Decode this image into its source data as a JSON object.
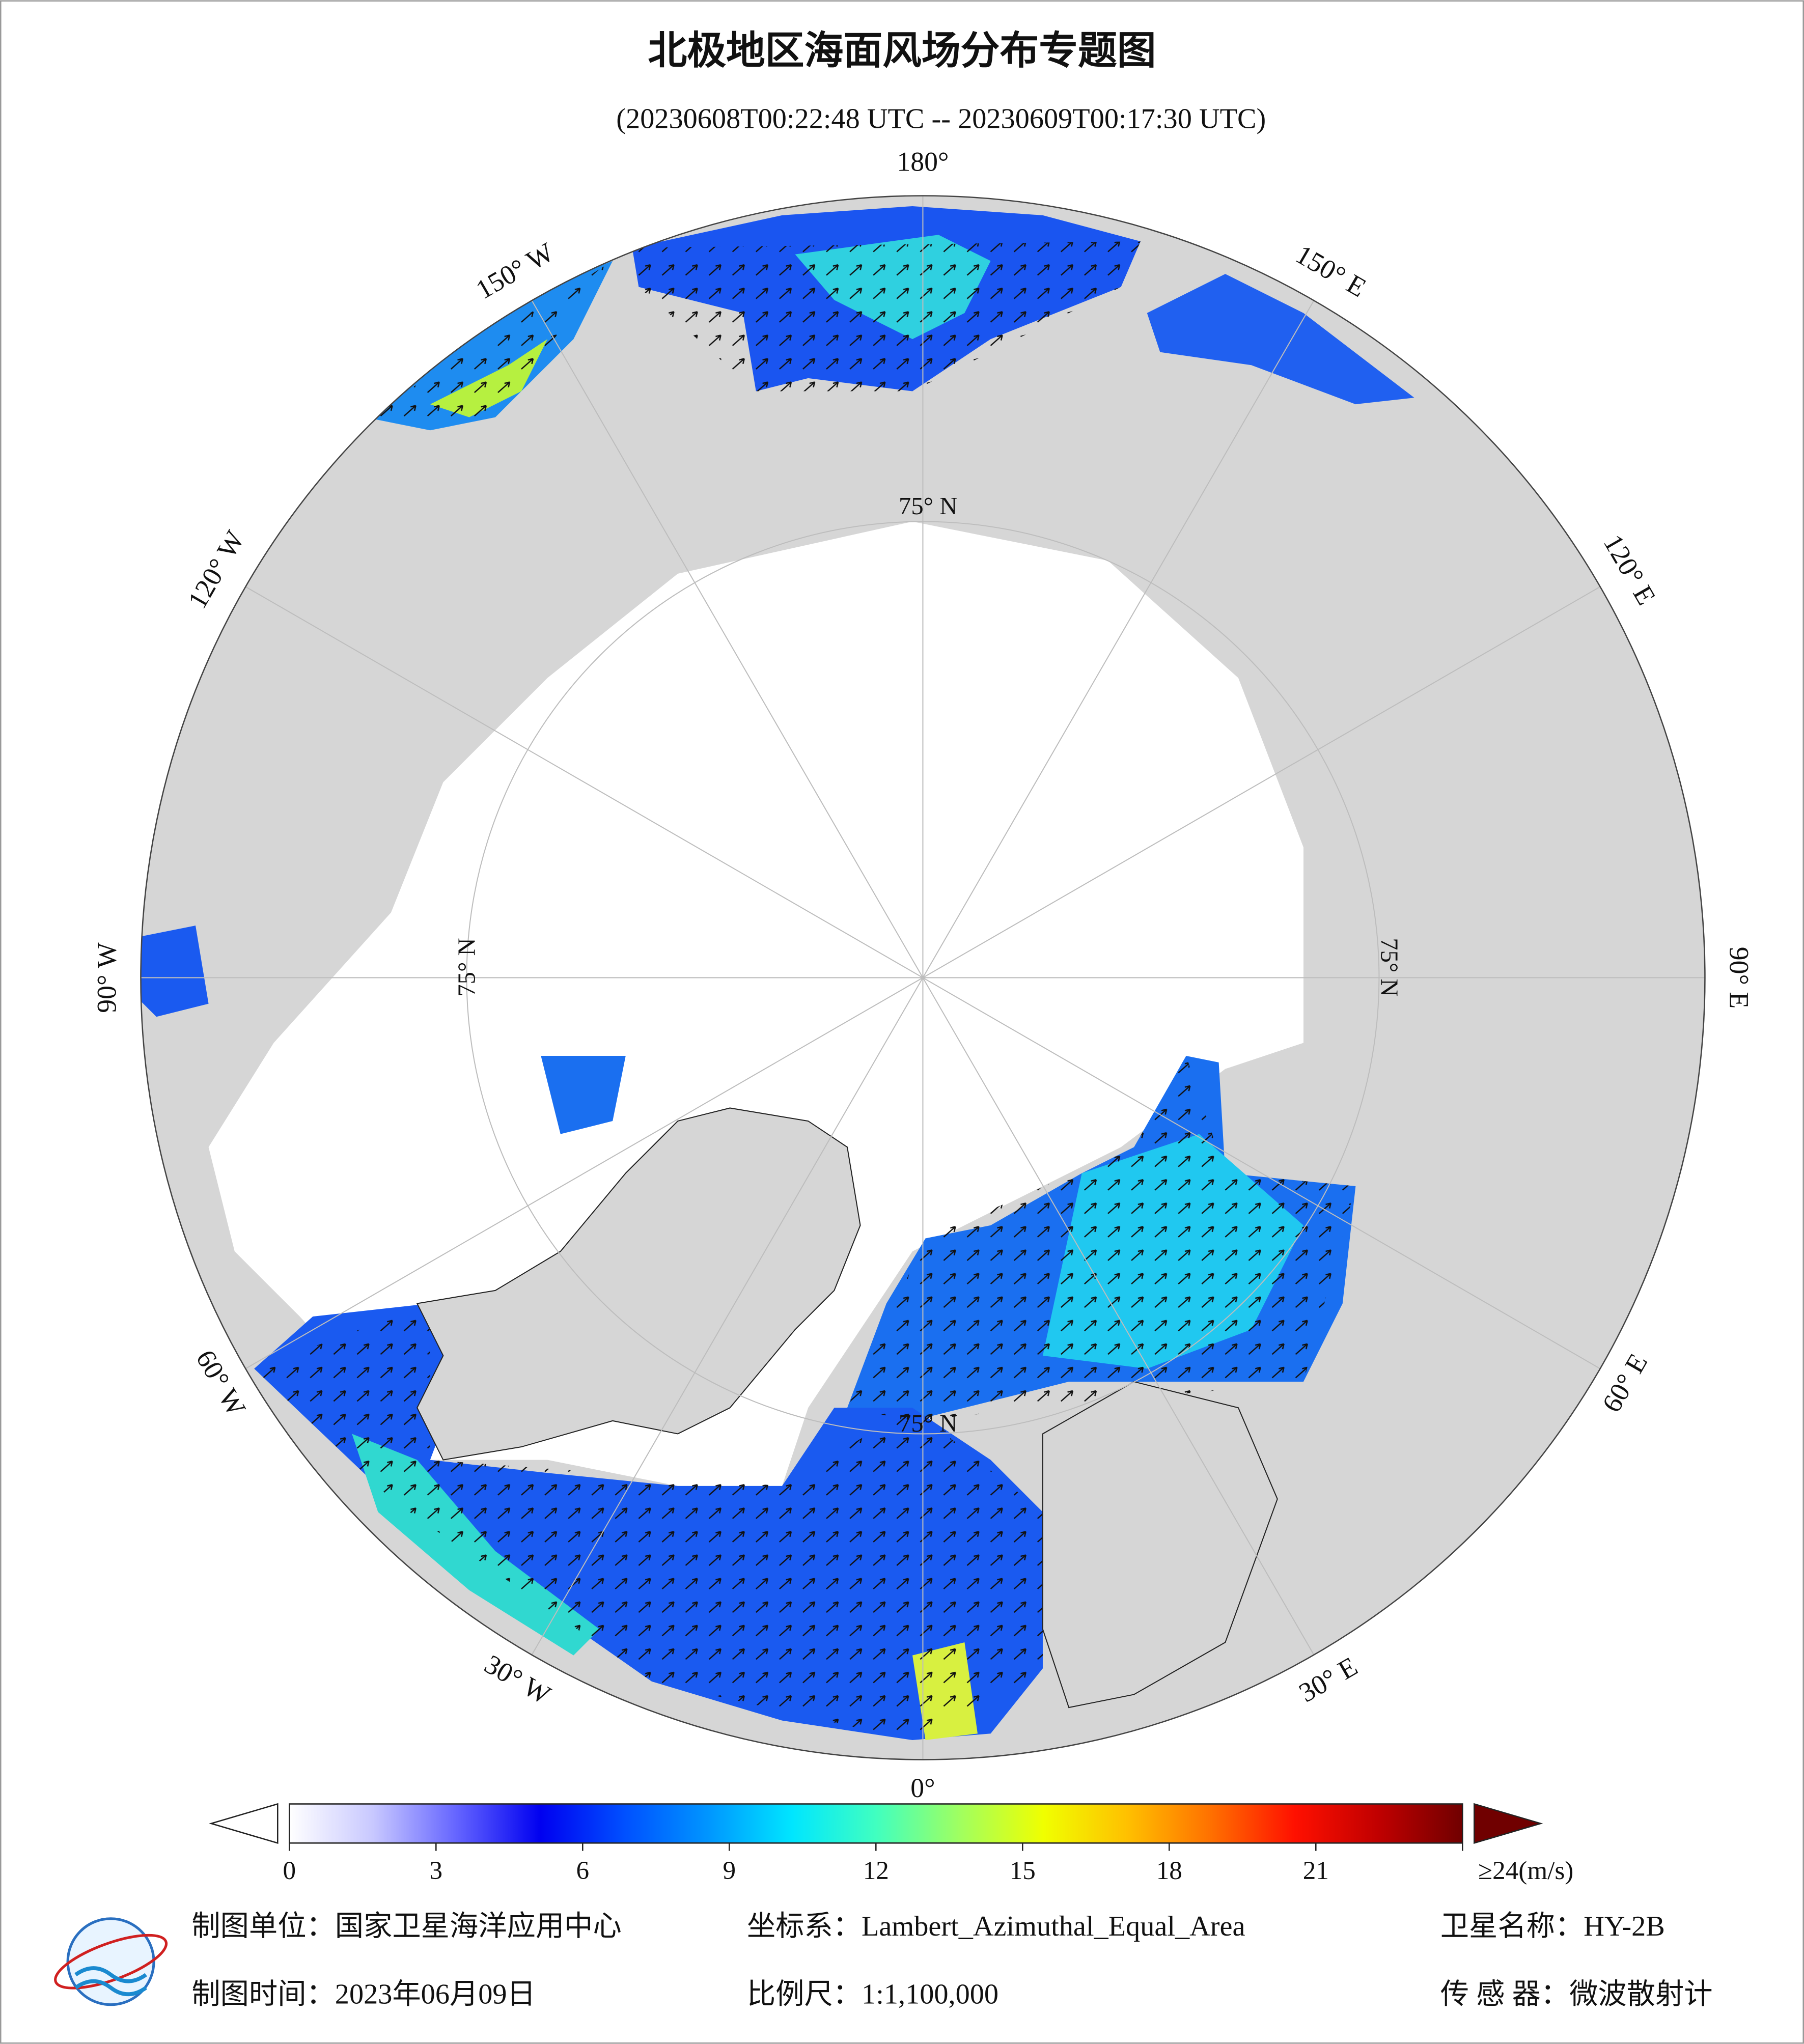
{
  "header": {
    "title": "北极地区海面风场分布专题图",
    "subtitle": "(20230608T00:22:48 UTC -- 20230609T00:17:30 UTC)"
  },
  "map": {
    "longitude_labels": [
      "180°",
      "150° E",
      "120° E",
      "90° E",
      "60° E",
      "30° E",
      "0°",
      "30° W",
      "60° W",
      "90° W",
      "120° W",
      "150° W"
    ],
    "latitude_labels": [
      "75° N",
      "75° N",
      "75° N",
      "75° N"
    ]
  },
  "colorbar": {
    "lim": [
      0,
      24
    ],
    "ticks": [
      0,
      3,
      6,
      9,
      12,
      15,
      18,
      21,
      {
        "value": 24,
        "label": "≥24(m/s)"
      }
    ],
    "colors": [
      "#ffffff",
      "#c8c8ff",
      "#6464ff",
      "#0000f0",
      "#0050ff",
      "#0096ff",
      "#00e6ff",
      "#40ffc0",
      "#a0ff60",
      "#f0ff00",
      "#ffc000",
      "#ff7000",
      "#ff1000",
      "#c00000",
      "#700000"
    ]
  },
  "footer": {
    "unit": "制图单位：国家卫星海洋应用中心",
    "coordinate_system": "坐标系：Lambert_Azimuthal_Equal_Area",
    "satellite": "卫星名称：HY-2B",
    "date": "制图时间：2023年06月09日",
    "scale": "比例尺：1:1,100,000",
    "sensor": "传 感 器：微波散射计"
  }
}
